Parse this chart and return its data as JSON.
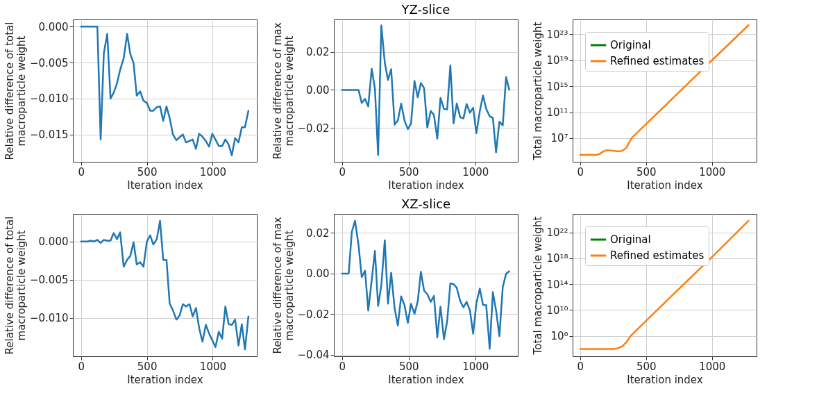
{
  "chart_data": [
    {
      "type": "line",
      "xlabel": "Iteration index",
      "ylabel": "Relative difference of total macroparticle weight",
      "xlim": [
        -62,
        1335
      ],
      "xticks": [
        0,
        500,
        1000
      ],
      "ylim": [
        -0.0188,
        0.001
      ],
      "yticks": [
        {
          "value": 0,
          "label": "0.000"
        },
        {
          "value": -0.005,
          "label": "−0.005"
        },
        {
          "value": -0.01,
          "label": "−0.010"
        },
        {
          "value": -0.015,
          "label": "−0.015"
        }
      ],
      "grid": true,
      "series": [
        {
          "color": "#1f77b4",
          "x": [
            0,
            124,
            149,
            173,
            199,
            224,
            248,
            273,
            297,
            324,
            350,
            374,
            399,
            423,
            449,
            474,
            500,
            525,
            549,
            575,
            600,
            624,
            649,
            673,
            698,
            724,
            748,
            773,
            797,
            824,
            848,
            873,
            897,
            922,
            948,
            972,
            997,
            1021,
            1046,
            1072,
            1096,
            1121,
            1145,
            1170,
            1196,
            1221,
            1245,
            1271
          ],
          "values": [
            0,
            0,
            -0.0157,
            -0.0037,
            -0.001,
            -0.01,
            -0.0092,
            -0.0079,
            -0.006,
            -0.0044,
            -0.001,
            -0.0038,
            -0.0051,
            -0.0096,
            -0.009,
            -0.0103,
            -0.0106,
            -0.0117,
            -0.0117,
            -0.0112,
            -0.0111,
            -0.0131,
            -0.0111,
            -0.0127,
            -0.015,
            -0.0158,
            -0.0154,
            -0.015,
            -0.0161,
            -0.0159,
            -0.0157,
            -0.017,
            -0.0149,
            -0.0153,
            -0.0159,
            -0.0167,
            -0.0149,
            -0.0157,
            -0.0166,
            -0.0166,
            -0.0157,
            -0.0164,
            -0.0179,
            -0.0155,
            -0.0161,
            -0.014,
            -0.014,
            -0.0117
          ]
        }
      ]
    },
    {
      "type": "line",
      "title": "YZ-slice",
      "xlabel": "Iteration index",
      "ylabel": "Relative difference of max macroparticle weight",
      "xlim": [
        -61,
        1319
      ],
      "xticks": [
        0,
        500,
        1000
      ],
      "ylim": [
        -0.0378,
        0.037
      ],
      "yticks": [
        {
          "value": 0.02,
          "label": "0.02"
        },
        {
          "value": 0,
          "label": "0.00"
        },
        {
          "value": -0.02,
          "label": "−0.02"
        }
      ],
      "grid": true,
      "series": [
        {
          "color": "#1f77b4",
          "x": [
            0,
            124,
            148,
            173,
            197,
            223,
            247,
            271,
            295,
            321,
            345,
            369,
            395,
            419,
            444,
            469,
            494,
            518,
            544,
            568,
            592,
            616,
            640,
            666,
            690,
            715,
            739,
            765,
            789,
            813,
            837,
            861,
            887,
            911,
            935,
            960,
            984,
            1008,
            1034,
            1058,
            1082,
            1108,
            1132,
            1156,
            1181,
            1206,
            1231,
            1255
          ],
          "values": [
            0,
            0,
            -0.0069,
            -0.0047,
            -0.0087,
            0.0111,
            0.0006,
            -0.0342,
            0.0339,
            0.0144,
            0.0052,
            0.0109,
            -0.0183,
            -0.0161,
            -0.0072,
            -0.0161,
            -0.0206,
            -0.0178,
            0.0047,
            -0.0039,
            0.0036,
            0.0009,
            -0.0198,
            -0.0111,
            -0.0133,
            -0.0256,
            -0.0042,
            -0.01,
            -0.0103,
            0.0128,
            -0.0176,
            -0.0072,
            -0.0144,
            -0.015,
            -0.0074,
            -0.012,
            -0.0094,
            -0.0228,
            -0.0111,
            -0.003,
            -0.01,
            -0.0139,
            -0.0147,
            -0.0328,
            -0.0167,
            -0.0187,
            0.0067,
            0
          ]
        }
      ]
    },
    {
      "type": "line",
      "xlabel": "Iteration index",
      "ylabel": "Total macroparticle weight",
      "log": "y",
      "xlim": [
        -57,
        1338
      ],
      "xticks": [
        0,
        500,
        1000
      ],
      "ylim": [
        2300.0,
        1.9e+25
      ],
      "yticks": [
        {
          "value": 10000000.0,
          "label": "10⁷"
        },
        {
          "value": 100000000000.0,
          "label": "10¹¹"
        },
        {
          "value": 1000000000000000.0,
          "label": "10¹⁵"
        },
        {
          "value": 1e+19,
          "label": "10¹⁹"
        },
        {
          "value": 1e+23,
          "label": "10²³"
        }
      ],
      "grid": true,
      "legend": "top left",
      "x": [
        0,
        125,
        150,
        175,
        200,
        250,
        290,
        320,
        350,
        390,
        1000,
        1277
      ],
      "series": [
        {
          "name": "Original",
          "color": "#008000",
          "values": [
            null,
            null,
            null,
            null,
            null,
            null,
            null,
            null,
            null,
            null,
            null,
            null
          ]
        },
        {
          "name": "Refined estimates",
          "color": "#ff7f0e",
          "values": [
            27000.0,
            27000.0,
            40000.0,
            89000.0,
            138000.0,
            120000.0,
            95000.0,
            120000.0,
            320000.0,
            10000000.0,
            1e+19,
            2.5e+24
          ]
        }
      ]
    },
    {
      "type": "line",
      "xlabel": "Iteration index",
      "ylabel": "Relative difference of total macroparticle weight",
      "xlim": [
        -62,
        1335
      ],
      "xticks": [
        0,
        500,
        1000
      ],
      "ylim": [
        -0.015,
        0.0036
      ],
      "yticks": [
        {
          "value": 0,
          "label": "0.000"
        },
        {
          "value": -0.005,
          "label": "−0.005"
        },
        {
          "value": -0.01,
          "label": "−0.010"
        }
      ],
      "grid": true,
      "series": [
        {
          "color": "#1f77b4",
          "x": [
            0,
            25,
            49,
            74,
            100,
            124,
            149,
            173,
            199,
            224,
            248,
            273,
            297,
            324,
            350,
            374,
            399,
            423,
            449,
            474,
            500,
            525,
            549,
            575,
            600,
            624,
            649,
            673,
            698,
            724,
            748,
            773,
            797,
            824,
            848,
            873,
            897,
            922,
            948,
            972,
            997,
            1021,
            1046,
            1072,
            1096,
            1121,
            1145,
            1170,
            1196,
            1221,
            1245,
            1271
          ],
          "values": [
            0,
            0,
            0,
            0.0001,
            0,
            0.0002,
            -0.0002,
            0.0002,
            0.0001,
            0.0001,
            0.0011,
            0.0003,
            0.0012,
            -0.0033,
            -0.0024,
            -0.0019,
            -0.0001,
            -0.003,
            -0.0027,
            -0.0033,
            0,
            0.0008,
            -0.0004,
            0.0003,
            0.0027,
            -0.0024,
            -0.0024,
            -0.0081,
            -0.009,
            -0.0102,
            -0.0097,
            -0.0082,
            -0.0085,
            -0.0082,
            -0.0098,
            -0.0087,
            -0.0113,
            -0.0131,
            -0.0109,
            -0.012,
            -0.0129,
            -0.0138,
            -0.0118,
            -0.0127,
            -0.0085,
            -0.0108,
            -0.0109,
            -0.0102,
            -0.0136,
            -0.0108,
            -0.0141,
            -0.0098
          ]
        }
      ]
    },
    {
      "type": "line",
      "title": "XZ-slice",
      "xlabel": "Iteration index",
      "ylabel": "Relative difference of max macroparticle weight",
      "xlim": [
        -61,
        1319
      ],
      "xticks": [
        0,
        500,
        1000
      ],
      "ylim": [
        -0.0407,
        0.0294
      ],
      "yticks": [
        {
          "value": 0.02,
          "label": "0.02"
        },
        {
          "value": 0,
          "label": "0.00"
        },
        {
          "value": -0.02,
          "label": "−0.02"
        },
        {
          "value": -0.04,
          "label": "−0.04"
        }
      ],
      "grid": true,
      "series": [
        {
          "color": "#1f77b4",
          "x": [
            0,
            24,
            50,
            74,
            98,
            124,
            148,
            173,
            197,
            223,
            247,
            271,
            295,
            321,
            345,
            369,
            395,
            419,
            444,
            469,
            494,
            518,
            544,
            568,
            592,
            616,
            640,
            666,
            690,
            715,
            739,
            765,
            789,
            813,
            837,
            861,
            887,
            911,
            935,
            960,
            984,
            1008,
            1034,
            1058,
            1082,
            1108,
            1132,
            1156,
            1181,
            1206,
            1231,
            1255
          ],
          "values": [
            0,
            0,
            0,
            0.0206,
            0.026,
            0.0141,
            -0.0017,
            0.0014,
            -0.0182,
            -0.0032,
            0.0112,
            -0.0159,
            -0.0058,
            0.0164,
            -0.0148,
            0.0004,
            -0.0172,
            -0.0256,
            -0.0112,
            -0.0156,
            -0.0242,
            -0.0149,
            -0.0198,
            -0.0137,
            0.0009,
            -0.0084,
            -0.0101,
            -0.0139,
            -0.011,
            -0.0314,
            -0.0163,
            -0.0323,
            -0.0234,
            -0.0048,
            -0.0052,
            -0.007,
            -0.0135,
            -0.0166,
            -0.0139,
            -0.0182,
            -0.0296,
            -0.0146,
            -0.0074,
            -0.0154,
            -0.0156,
            -0.037,
            -0.0091,
            -0.0182,
            -0.0308,
            -0.0068,
            -0.0001,
            0.0012
          ]
        }
      ]
    },
    {
      "type": "line",
      "xlabel": "Iteration index",
      "ylabel": "Total macroparticle weight",
      "log": "y",
      "xlim": [
        -57,
        1338
      ],
      "xticks": [
        0,
        500,
        1000
      ],
      "ylim": [
        700.0,
        7.4e+24
      ],
      "yticks": [
        {
          "value": 1000000.0,
          "label": "10⁶"
        },
        {
          "value": 10000000000.0,
          "label": "10¹⁰"
        },
        {
          "value": 100000000000000.0,
          "label": "10¹⁴"
        },
        {
          "value": 1e+18,
          "label": "10¹⁸"
        },
        {
          "value": 1e+22,
          "label": "10²²"
        }
      ],
      "grid": true,
      "legend": "top left",
      "x": [
        0,
        250,
        280,
        320,
        350,
        383,
        584,
        1000,
        1277
      ],
      "series": [
        {
          "name": "Original",
          "color": "#008000",
          "values": [
            null,
            null,
            null,
            null,
            null,
            null,
            null,
            null,
            null
          ]
        },
        {
          "name": "Refined estimates",
          "color": "#ff7f0e",
          "values": [
            9500.0,
            9500.0,
            11200.0,
            25000.0,
            100000.0,
            1000000.0,
            10000000000.0,
            1.6e+18,
            6.3e+23
          ]
        }
      ]
    }
  ]
}
